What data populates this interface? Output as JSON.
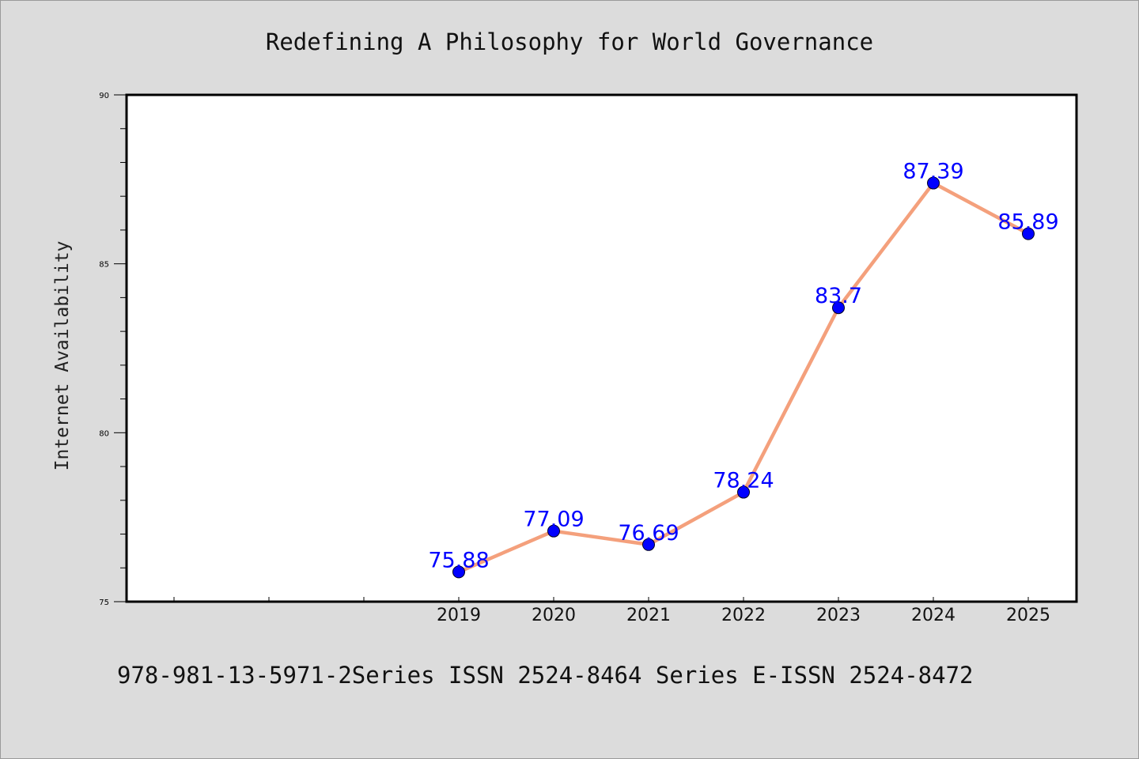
{
  "chart_data": {
    "type": "line",
    "title": "Redefining A Philosophy for World Governance",
    "ylabel": "Internet Availability",
    "xlabel": "",
    "x": [
      "2019",
      "2020",
      "2021",
      "2022",
      "2023",
      "2024",
      "2025"
    ],
    "series": [
      {
        "values": [
          75.88,
          77.09,
          76.69,
          78.24,
          83.7,
          87.39,
          85.89
        ],
        "labels": [
          "75.88",
          "77.09",
          "76.69",
          "78.24",
          "83.7",
          "87.39",
          "85.89"
        ]
      }
    ],
    "ylim": [
      75,
      90
    ],
    "yticks": [
      "75",
      "80",
      "85",
      "90"
    ],
    "grid": false,
    "colors": {
      "line": "#f4a07c",
      "marker": "#0000ff",
      "label": "#0000ff"
    }
  },
  "footer": "978-981-13-5971-2Series ISSN 2524-8464 Series E-ISSN 2524-8472"
}
